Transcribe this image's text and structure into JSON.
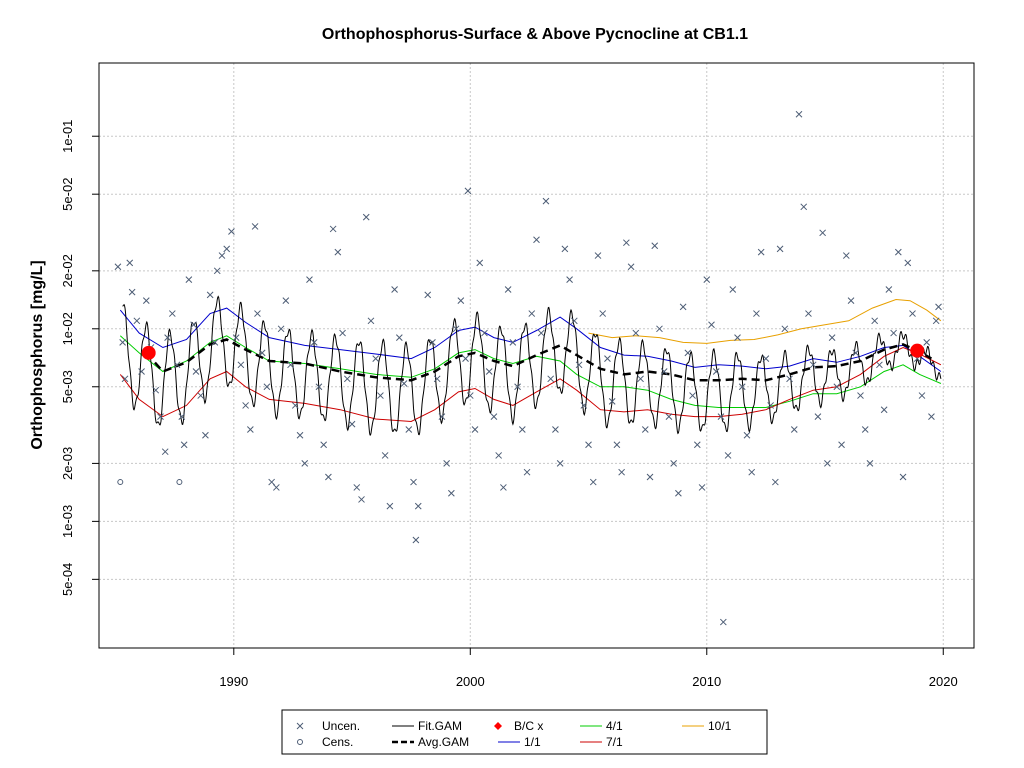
{
  "chart_data": {
    "type": "scatter",
    "title": "Orthophosphorus-Surface & Above Pycnocline at CB1.1",
    "xlabel": "",
    "ylabel": "Orthophosphorus [mg/L]",
    "xlim": [
      1984.3,
      2021.3
    ],
    "ylim": [
      0.00022,
      0.24
    ],
    "y_scale": "log",
    "x_ticks": [
      1990,
      2000,
      2010,
      2020
    ],
    "x_tick_labels": [
      "1990",
      "2000",
      "2010",
      "2020"
    ],
    "y_ticks": [
      0.0005,
      0.001,
      0.002,
      0.005,
      0.01,
      0.02,
      0.05,
      0.1
    ],
    "y_tick_labels": [
      "5e-04",
      "1e-03",
      "2e-03",
      "5e-03",
      "1e-02",
      "2e-02",
      "5e-02",
      "1e-01"
    ],
    "grid": true,
    "legend": {
      "placement": "bottom-center",
      "entries": [
        {
          "label": "Uncen.",
          "symbol": "x",
          "color": "#4d5d75"
        },
        {
          "label": "Cens.",
          "symbol": "circle",
          "color": "#4d5d75"
        },
        {
          "label": "Fit.GAM",
          "symbol": "line",
          "color": "#000000"
        },
        {
          "label": "Avg.GAM",
          "symbol": "dashed",
          "color": "#000000"
        },
        {
          "label": "B/C x",
          "symbol": "diamond",
          "color": "#ff0000"
        },
        {
          "label": "1/1",
          "symbol": "line",
          "color": "#0000cd"
        },
        {
          "label": "4/1",
          "symbol": "line",
          "color": "#00cd00"
        },
        {
          "label": "7/1",
          "symbol": "line",
          "color": "#cd0000"
        },
        {
          "label": "10/1",
          "symbol": "line",
          "color": "#e8a000"
        }
      ]
    },
    "colors": {
      "points": "#4d5d75",
      "fit": "#000000",
      "avg": "#000000",
      "bc": "#ff0000",
      "s1": "#0000cd",
      "s4": "#00cd00",
      "s7": "#cd0000",
      "s10": "#e8a000",
      "grid": "#c8c8c8"
    },
    "uncensored_points": [
      [
        1985.1,
        0.021
      ],
      [
        1985.3,
        0.0085
      ],
      [
        1985.4,
        0.0055
      ],
      [
        1985.6,
        0.022
      ],
      [
        1985.7,
        0.0155
      ],
      [
        1985.9,
        0.011
      ],
      [
        1986.1,
        0.006
      ],
      [
        1986.3,
        0.014
      ],
      [
        1986.5,
        0.008
      ],
      [
        1986.7,
        0.0048
      ],
      [
        1986.9,
        0.0035
      ],
      [
        1987.1,
        0.0023
      ],
      [
        1987.2,
        0.009
      ],
      [
        1987.4,
        0.012
      ],
      [
        1987.6,
        0.0065
      ],
      [
        1987.8,
        0.0035
      ],
      [
        1987.9,
        0.0025
      ],
      [
        1988.1,
        0.018
      ],
      [
        1988.3,
        0.0105
      ],
      [
        1988.4,
        0.006
      ],
      [
        1988.6,
        0.0045
      ],
      [
        1988.8,
        0.0028
      ],
      [
        1989.0,
        0.015
      ],
      [
        1989.2,
        0.0085
      ],
      [
        1989.3,
        0.02
      ],
      [
        1989.5,
        0.024
      ],
      [
        1989.7,
        0.026
      ],
      [
        1989.9,
        0.032
      ],
      [
        1990.1,
        0.009
      ],
      [
        1990.3,
        0.0065
      ],
      [
        1990.5,
        0.004
      ],
      [
        1990.7,
        0.003
      ],
      [
        1990.9,
        0.034
      ],
      [
        1991.0,
        0.012
      ],
      [
        1991.2,
        0.0075
      ],
      [
        1991.4,
        0.005
      ],
      [
        1991.6,
        0.0016
      ],
      [
        1991.8,
        0.0015
      ],
      [
        1992.0,
        0.01
      ],
      [
        1992.2,
        0.014
      ],
      [
        1992.4,
        0.0065
      ],
      [
        1992.6,
        0.004
      ],
      [
        1992.8,
        0.0028
      ],
      [
        1993.0,
        0.002
      ],
      [
        1993.2,
        0.018
      ],
      [
        1993.4,
        0.0085
      ],
      [
        1993.6,
        0.005
      ],
      [
        1993.8,
        0.0025
      ],
      [
        1994.0,
        0.0017
      ],
      [
        1994.2,
        0.033
      ],
      [
        1994.4,
        0.025
      ],
      [
        1994.6,
        0.0095
      ],
      [
        1994.8,
        0.0055
      ],
      [
        1995.0,
        0.0032
      ],
      [
        1995.2,
        0.0015
      ],
      [
        1995.4,
        0.0013
      ],
      [
        1995.6,
        0.038
      ],
      [
        1995.8,
        0.011
      ],
      [
        1996.0,
        0.007
      ],
      [
        1996.2,
        0.0045
      ],
      [
        1996.4,
        0.0022
      ],
      [
        1996.6,
        0.0012
      ],
      [
        1996.8,
        0.016
      ],
      [
        1997.0,
        0.009
      ],
      [
        1997.2,
        0.0052
      ],
      [
        1997.4,
        0.003
      ],
      [
        1997.6,
        0.0016
      ],
      [
        1997.8,
        0.0012
      ],
      [
        1997.7,
        0.0008
      ],
      [
        1998.2,
        0.015
      ],
      [
        1998.4,
        0.0085
      ],
      [
        1998.6,
        0.0055
      ],
      [
        1998.8,
        0.0035
      ],
      [
        1999.0,
        0.002
      ],
      [
        1999.2,
        0.0014
      ],
      [
        1999.4,
        0.01
      ],
      [
        1999.6,
        0.014
      ],
      [
        1999.8,
        0.007
      ],
      [
        2000.0,
        0.0045
      ],
      [
        2000.2,
        0.003
      ],
      [
        1999.9,
        0.052
      ],
      [
        2000.4,
        0.022
      ],
      [
        2000.6,
        0.0095
      ],
      [
        2000.8,
        0.006
      ],
      [
        2001.0,
        0.0035
      ],
      [
        2001.2,
        0.0022
      ],
      [
        2001.4,
        0.0015
      ],
      [
        2001.6,
        0.016
      ],
      [
        2001.8,
        0.0085
      ],
      [
        2002.0,
        0.005
      ],
      [
        2002.2,
        0.003
      ],
      [
        2002.4,
        0.0018
      ],
      [
        2002.6,
        0.012
      ],
      [
        2002.8,
        0.029
      ],
      [
        2003.0,
        0.0095
      ],
      [
        2003.2,
        0.046
      ],
      [
        2003.4,
        0.0055
      ],
      [
        2003.6,
        0.003
      ],
      [
        2003.8,
        0.002
      ],
      [
        2004.0,
        0.026
      ],
      [
        2004.2,
        0.018
      ],
      [
        2004.4,
        0.011
      ],
      [
        2004.6,
        0.0065
      ],
      [
        2004.8,
        0.004
      ],
      [
        2005.0,
        0.0025
      ],
      [
        2005.2,
        0.0016
      ],
      [
        2005.4,
        0.024
      ],
      [
        2005.6,
        0.012
      ],
      [
        2005.8,
        0.007
      ],
      [
        2006.0,
        0.0042
      ],
      [
        2006.2,
        0.0025
      ],
      [
        2006.4,
        0.0018
      ],
      [
        2006.6,
        0.028
      ],
      [
        2006.8,
        0.021
      ],
      [
        2007.0,
        0.0095
      ],
      [
        2007.2,
        0.0055
      ],
      [
        2007.4,
        0.003
      ],
      [
        2007.6,
        0.0017
      ],
      [
        2007.8,
        0.027
      ],
      [
        2008.0,
        0.01
      ],
      [
        2008.2,
        0.006
      ],
      [
        2008.4,
        0.0035
      ],
      [
        2008.6,
        0.002
      ],
      [
        2008.8,
        0.0014
      ],
      [
        2009.0,
        0.013
      ],
      [
        2009.2,
        0.0075
      ],
      [
        2009.4,
        0.0045
      ],
      [
        2009.6,
        0.0025
      ],
      [
        2009.8,
        0.0015
      ],
      [
        2010.0,
        0.018
      ],
      [
        2010.2,
        0.0105
      ],
      [
        2010.4,
        0.006
      ],
      [
        2010.6,
        0.0035
      ],
      [
        2010.7,
        0.0003
      ],
      [
        2010.9,
        0.0022
      ],
      [
        2011.1,
        0.016
      ],
      [
        2011.3,
        0.009
      ],
      [
        2011.5,
        0.005
      ],
      [
        2011.7,
        0.0028
      ],
      [
        2011.9,
        0.0018
      ],
      [
        2012.1,
        0.012
      ],
      [
        2012.3,
        0.025
      ],
      [
        2012.5,
        0.007
      ],
      [
        2012.7,
        0.004
      ],
      [
        2012.9,
        0.0016
      ],
      [
        2013.1,
        0.026
      ],
      [
        2013.3,
        0.01
      ],
      [
        2013.5,
        0.0055
      ],
      [
        2013.7,
        0.003
      ],
      [
        2013.9,
        0.13
      ],
      [
        2014.1,
        0.043
      ],
      [
        2014.3,
        0.012
      ],
      [
        2014.5,
        0.0065
      ],
      [
        2014.7,
        0.0035
      ],
      [
        2014.9,
        0.0315
      ],
      [
        2015.1,
        0.002
      ],
      [
        2015.3,
        0.009
      ],
      [
        2015.5,
        0.005
      ],
      [
        2015.7,
        0.0025
      ],
      [
        2015.9,
        0.024
      ],
      [
        2016.1,
        0.014
      ],
      [
        2016.3,
        0.0075
      ],
      [
        2016.5,
        0.0045
      ],
      [
        2016.7,
        0.003
      ],
      [
        2016.9,
        0.002
      ],
      [
        2017.1,
        0.011
      ],
      [
        2017.3,
        0.0065
      ],
      [
        2017.5,
        0.0038
      ],
      [
        2017.7,
        0.016
      ],
      [
        2017.9,
        0.0095
      ],
      [
        2018.1,
        0.025
      ],
      [
        2018.3,
        0.0017
      ],
      [
        2018.5,
        0.022
      ],
      [
        2018.7,
        0.012
      ],
      [
        2018.9,
        0.007
      ],
      [
        2019.1,
        0.0045
      ],
      [
        2019.3,
        0.0085
      ],
      [
        2019.5,
        0.0035
      ],
      [
        2019.7,
        0.011
      ],
      [
        2019.8,
        0.013
      ]
    ],
    "censored_points": [
      [
        1985.2,
        0.0016
      ],
      [
        1987.7,
        0.0016
      ]
    ],
    "bc_points": [
      [
        1986.4,
        0.0075
      ],
      [
        2018.9,
        0.0077
      ]
    ],
    "curves": {
      "s1": [
        [
          1985.2,
          0.0125
        ],
        [
          1986,
          0.0095
        ],
        [
          1987,
          0.008
        ],
        [
          1988,
          0.0088
        ],
        [
          1989,
          0.012
        ],
        [
          1989.7,
          0.0128
        ],
        [
          1990.5,
          0.0108
        ],
        [
          1991.5,
          0.009
        ],
        [
          1993,
          0.0082
        ],
        [
          1994.5,
          0.0078
        ],
        [
          1996,
          0.0074
        ],
        [
          1997.5,
          0.007
        ],
        [
          1998.5,
          0.008
        ],
        [
          1999.5,
          0.0098
        ],
        [
          2000.2,
          0.0102
        ],
        [
          2001,
          0.009
        ],
        [
          2001.8,
          0.0085
        ],
        [
          2002.8,
          0.0098
        ],
        [
          2003.8,
          0.0115
        ],
        [
          2004.5,
          0.01
        ],
        [
          2005.5,
          0.008
        ],
        [
          2006.5,
          0.0073
        ],
        [
          2007.5,
          0.0072
        ],
        [
          2008.5,
          0.0068
        ],
        [
          2009.5,
          0.0063
        ],
        [
          2010.5,
          0.0065
        ],
        [
          2011.5,
          0.0064
        ],
        [
          2012.5,
          0.0062
        ],
        [
          2013.5,
          0.0064
        ],
        [
          2014.5,
          0.007
        ],
        [
          2015.5,
          0.0067
        ],
        [
          2016.5,
          0.0072
        ],
        [
          2017.5,
          0.008
        ],
        [
          2018.3,
          0.0082
        ],
        [
          2019,
          0.0072
        ],
        [
          2019.9,
          0.006
        ]
      ],
      "s4": [
        [
          1985.2,
          0.0092
        ],
        [
          1986,
          0.0075
        ],
        [
          1987,
          0.006
        ],
        [
          1988,
          0.0068
        ],
        [
          1989,
          0.0085
        ],
        [
          1989.7,
          0.0092
        ],
        [
          1990.5,
          0.008
        ],
        [
          1991.5,
          0.0068
        ],
        [
          1993,
          0.0066
        ],
        [
          1994.5,
          0.0062
        ],
        [
          1996,
          0.0058
        ],
        [
          1997.5,
          0.0056
        ],
        [
          1998.5,
          0.0062
        ],
        [
          1999.5,
          0.0075
        ],
        [
          2000.2,
          0.0078
        ],
        [
          2001,
          0.007
        ],
        [
          2001.8,
          0.0066
        ],
        [
          2002.8,
          0.0072
        ],
        [
          2003.8,
          0.0068
        ],
        [
          2004.5,
          0.0058
        ],
        [
          2005.5,
          0.005
        ],
        [
          2006.5,
          0.005
        ],
        [
          2007.5,
          0.0048
        ],
        [
          2008.5,
          0.0043
        ],
        [
          2009.5,
          0.004
        ],
        [
          2010.5,
          0.0039
        ],
        [
          2011.5,
          0.0039
        ],
        [
          2012.5,
          0.0039
        ],
        [
          2013.5,
          0.0042
        ],
        [
          2014.5,
          0.0046
        ],
        [
          2015.5,
          0.0046
        ],
        [
          2016.5,
          0.005
        ],
        [
          2017.5,
          0.006
        ],
        [
          2018.3,
          0.0065
        ],
        [
          2019,
          0.0058
        ],
        [
          2019.9,
          0.0052
        ]
      ],
      "s7": [
        [
          1985.2,
          0.0058
        ],
        [
          1986,
          0.0043
        ],
        [
          1987,
          0.0035
        ],
        [
          1988,
          0.004
        ],
        [
          1989,
          0.0055
        ],
        [
          1989.7,
          0.006
        ],
        [
          1990.5,
          0.005
        ],
        [
          1991.5,
          0.0043
        ],
        [
          1993,
          0.0041
        ],
        [
          1994.5,
          0.0038
        ],
        [
          1996,
          0.0034
        ],
        [
          1997.5,
          0.0033
        ],
        [
          1998.5,
          0.0038
        ],
        [
          1999.5,
          0.0047
        ],
        [
          2000.2,
          0.0049
        ],
        [
          2001,
          0.0043
        ],
        [
          2001.8,
          0.004
        ],
        [
          2002.8,
          0.0047
        ],
        [
          2003.8,
          0.0055
        ],
        [
          2004.5,
          0.0048
        ],
        [
          2005.5,
          0.0038
        ],
        [
          2006.5,
          0.0037
        ],
        [
          2007.5,
          0.0038
        ],
        [
          2008.5,
          0.0036
        ],
        [
          2009.5,
          0.0035
        ],
        [
          2010.5,
          0.0035
        ],
        [
          2011.5,
          0.0036
        ],
        [
          2012.5,
          0.0038
        ],
        [
          2013.5,
          0.0043
        ],
        [
          2014.5,
          0.0048
        ],
        [
          2015.5,
          0.005
        ],
        [
          2016.5,
          0.0058
        ],
        [
          2017.5,
          0.0072
        ],
        [
          2018.3,
          0.008
        ],
        [
          2019,
          0.0074
        ],
        [
          2019.9,
          0.0065
        ]
      ],
      "s10": [
        [
          2005.0,
          0.0095
        ],
        [
          2006,
          0.009
        ],
        [
          2007,
          0.0092
        ],
        [
          2008,
          0.009
        ],
        [
          2009,
          0.0085
        ],
        [
          2010,
          0.0084
        ],
        [
          2011,
          0.0087
        ],
        [
          2012,
          0.0088
        ],
        [
          2013,
          0.0093
        ],
        [
          2014,
          0.01
        ],
        [
          2015,
          0.0105
        ],
        [
          2016,
          0.011
        ],
        [
          2017,
          0.0128
        ],
        [
          2018,
          0.0142
        ],
        [
          2018.6,
          0.014
        ],
        [
          2019.3,
          0.0125
        ],
        [
          2019.9,
          0.011
        ]
      ],
      "avg": [
        [
          1986.3,
          0.0075
        ],
        [
          1987,
          0.006
        ],
        [
          1988,
          0.0067
        ],
        [
          1989,
          0.0083
        ],
        [
          1989.7,
          0.0088
        ],
        [
          1990.5,
          0.0078
        ],
        [
          1991.5,
          0.0068
        ],
        [
          1993,
          0.0066
        ],
        [
          1994.5,
          0.006
        ],
        [
          1996,
          0.0056
        ],
        [
          1997.5,
          0.0054
        ],
        [
          1998.5,
          0.006
        ],
        [
          1999.5,
          0.0072
        ],
        [
          2000.2,
          0.0075
        ],
        [
          2001,
          0.0068
        ],
        [
          2001.8,
          0.0064
        ],
        [
          2002.8,
          0.0073
        ],
        [
          2003.8,
          0.0082
        ],
        [
          2004.5,
          0.0073
        ],
        [
          2005.5,
          0.0062
        ],
        [
          2006.5,
          0.0058
        ],
        [
          2007.5,
          0.006
        ],
        [
          2008.5,
          0.0058
        ],
        [
          2009.5,
          0.0054
        ],
        [
          2010.5,
          0.0054
        ],
        [
          2011.5,
          0.0055
        ],
        [
          2012.5,
          0.0054
        ],
        [
          2013.5,
          0.0058
        ],
        [
          2014.5,
          0.0063
        ],
        [
          2015.5,
          0.0064
        ],
        [
          2016.5,
          0.0068
        ],
        [
          2017.5,
          0.0078
        ],
        [
          2018.3,
          0.0083
        ],
        [
          2019,
          0.0076
        ],
        [
          2019.5,
          0.007
        ]
      ]
    }
  }
}
